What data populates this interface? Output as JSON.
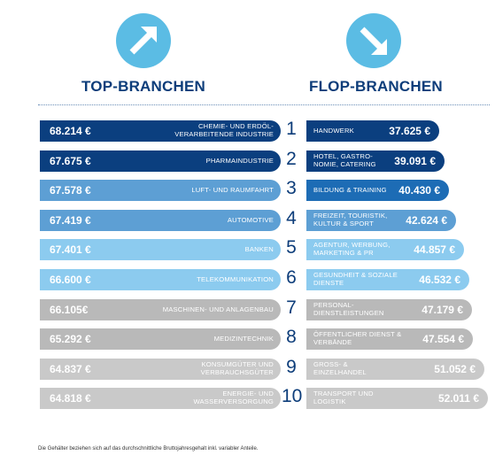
{
  "top_title": "TOP-BRANCHEN",
  "flop_title": "FLOP-BRANCHEN",
  "footnote": "Die Gehälter beziehen sich auf das durchschnittliche Bruttojahresgehalt inkl. variabler Anteile.",
  "colors": {
    "navy": "#0b3f7f",
    "blue": "#1d6cb5",
    "mid_blue": "#5d9fd4",
    "light_blue": "#8ccbef",
    "gray": "#b9b9b9",
    "light_gray": "#c9c9c9",
    "accent": "#5bbce4",
    "title": "#0d3d7a"
  },
  "chart_data": {
    "type": "bar",
    "ranks": [
      "1",
      "2",
      "3",
      "4",
      "5",
      "6",
      "7",
      "8",
      "9",
      "10"
    ],
    "top": {
      "name": "TOP-BRANCHEN",
      "labels": [
        "CHEMIE- UND ERDÖL-VERARBEITENDE INDUSTRIE",
        "PHARMAINDUSTRIE",
        "LUFT- UND RAUMFAHRT",
        "AUTOMOTIVE",
        "BANKEN",
        "TELEKOMMUNIKATION",
        "MASCHINEN- UND ANLAGENBAU",
        "MEDIZINTECHNIK",
        "KONSUMGÜTER UND VERBRAUCHSGÜTER",
        "ENERGIE- UND WASSERVERSORGUNG"
      ],
      "values_text": [
        "68.214 €",
        "67.675 €",
        "67.578 €",
        "67.419 €",
        "67.401 €",
        "66.600 €",
        "66.105€",
        "65.292 €",
        "64.837 €",
        "64.818 €"
      ],
      "values": [
        68214,
        67675,
        67578,
        67419,
        67401,
        66600,
        66105,
        65292,
        64837,
        64818
      ]
    },
    "flop": {
      "name": "FLOP-BRANCHEN",
      "labels": [
        "HANDWERK",
        "HOTEL, GASTRO-NOMIE, CATERING",
        "BILDUNG & TRAINING",
        "FREIZEIT, TOURISTIK, KULTUR & SPORT",
        "AGENTUR, WERBUNG, MARKETING & PR",
        "GESUNDHEIT & SOZIALE DIENSTE",
        "PERSONAL-DIENSTLEISTUNGEN",
        "ÖFFENTLICHER DIENST & VERBÄNDE",
        "GROSS- & EINZELHANDEL",
        "TRANSPORT UND LOGISTIK"
      ],
      "values_text": [
        "37.625 €",
        "39.091 €",
        "40.430 €",
        "42.624 €",
        "44.857 €",
        "46.532 €",
        "47.179 €",
        "47.554 €",
        "51.052 €",
        "52.011 €"
      ],
      "values": [
        37625,
        39091,
        40430,
        42624,
        44857,
        46532,
        47179,
        47554,
        51052,
        52011
      ]
    }
  }
}
